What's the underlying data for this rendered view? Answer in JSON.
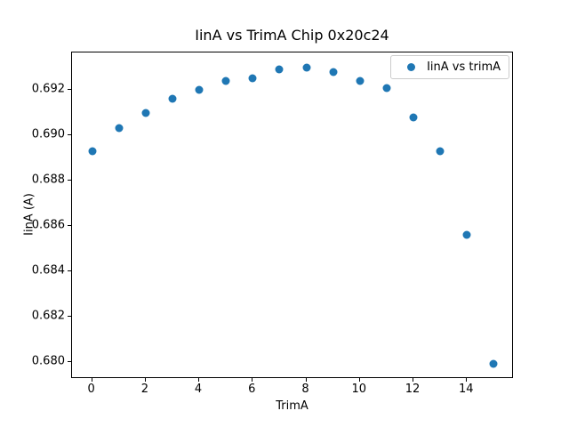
{
  "chart_data": {
    "type": "scatter",
    "title": "IinA vs TrimA Chip 0x20c24",
    "xlabel": "TrimA",
    "ylabel": "IinA (A)",
    "legend": {
      "label": "IinA vs trimA",
      "position": "upper right"
    },
    "marker_color": "#1f77b4",
    "background_color": "#ffffff",
    "grid": false,
    "x": [
      0,
      1,
      2,
      3,
      4,
      5,
      6,
      7,
      8,
      9,
      10,
      11,
      12,
      13,
      14,
      15
    ],
    "y": [
      0.6893,
      0.6903,
      0.691,
      0.6916,
      0.692,
      0.6924,
      0.6925,
      0.6929,
      0.693,
      0.6928,
      0.6924,
      0.6921,
      0.6908,
      0.6893,
      0.6856,
      0.6799
    ],
    "xlim": [
      -0.75,
      15.75
    ],
    "ylim": [
      0.67925,
      0.69365
    ],
    "xticks": [
      0,
      2,
      4,
      6,
      8,
      10,
      12,
      14
    ],
    "xtick_labels": [
      "0",
      "2",
      "4",
      "6",
      "8",
      "10",
      "12",
      "14"
    ],
    "yticks": [
      0.68,
      0.682,
      0.684,
      0.686,
      0.688,
      0.69,
      0.692
    ],
    "ytick_labels": [
      "0.680",
      "0.682",
      "0.684",
      "0.686",
      "0.688",
      "0.690",
      "0.692"
    ]
  }
}
